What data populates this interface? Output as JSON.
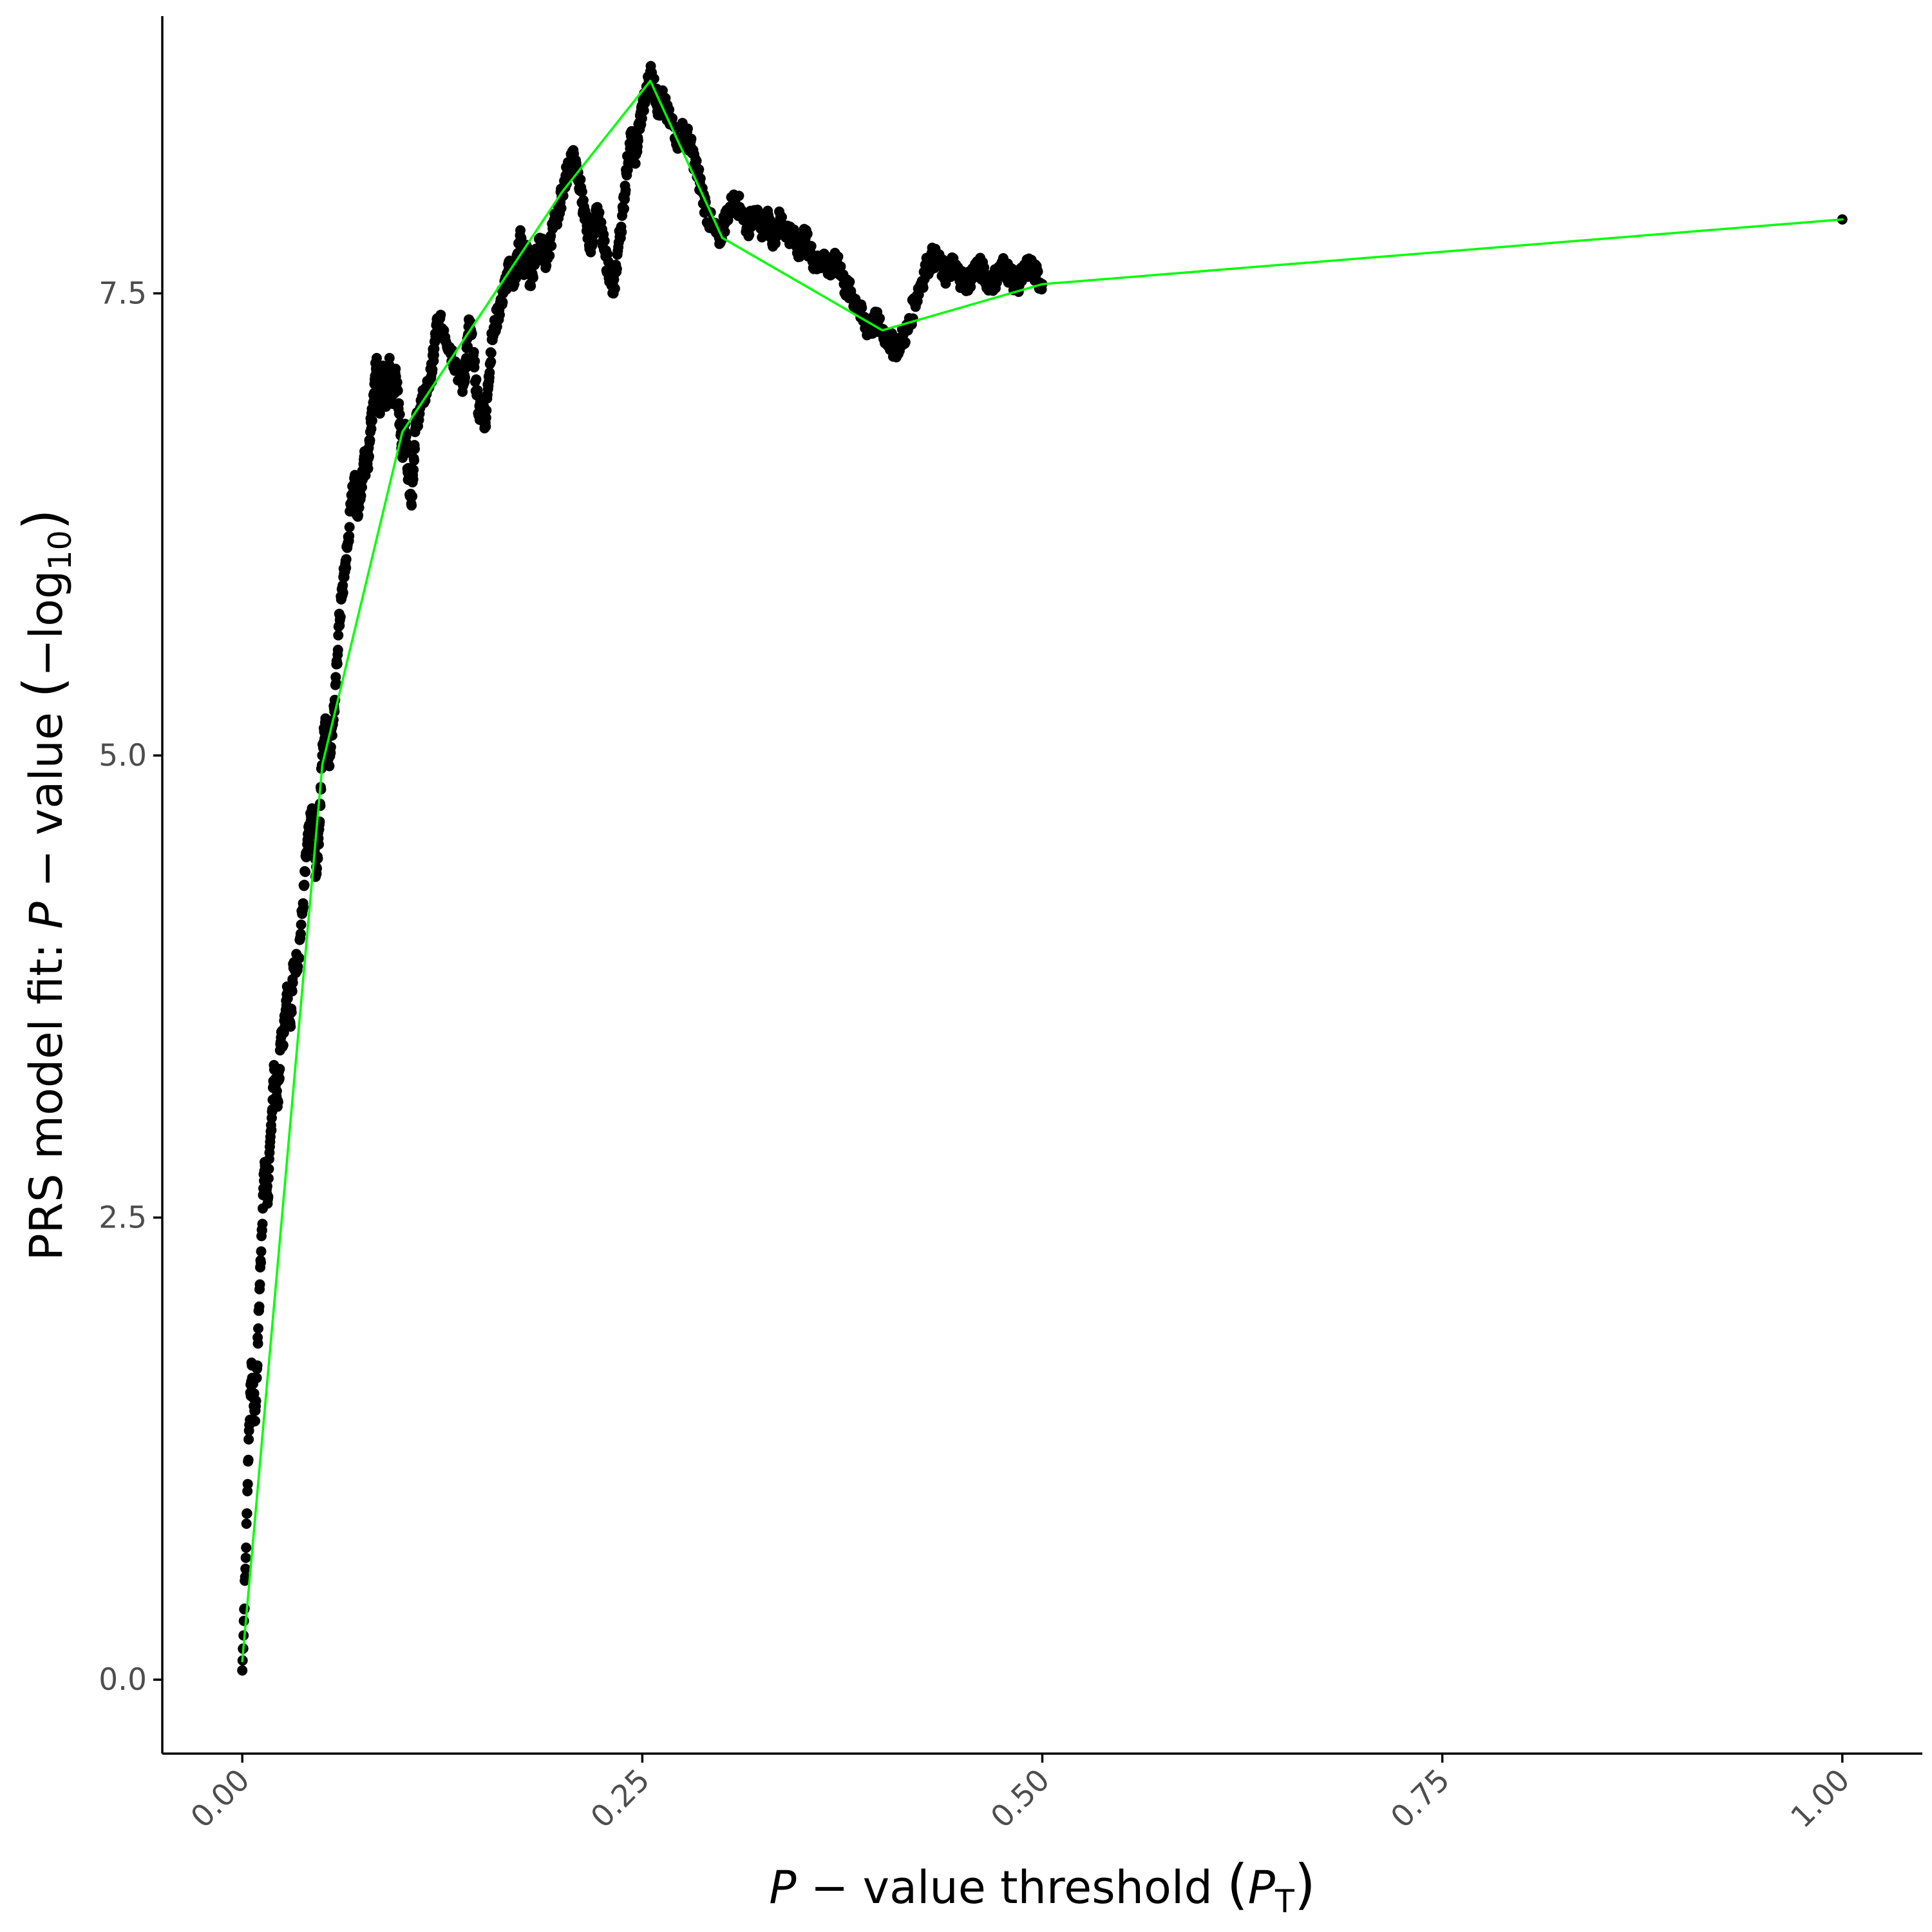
{
  "chart_data": {
    "type": "scatter",
    "title": "",
    "xlabel": "P − value threshold (P_T)",
    "ylabel": "PRS model fit: P − value (−log10)",
    "xlabel_parts": {
      "italic": "P",
      "middle": " − value threshold ",
      "open": "(",
      "sym": "P",
      "sub": "T",
      "close": ")"
    },
    "ylabel_parts": {
      "lead": "PRS model fit",
      "colon": ":",
      "italic": "P",
      "middle": " − value ",
      "open": "(",
      "neg": "−log",
      "sub": "10",
      "close": ")"
    },
    "xlim": [
      -0.05,
      1.05
    ],
    "ylim": [
      -0.4,
      9.0
    ],
    "x_ticks": [
      0,
      0.25,
      0.5,
      0.75,
      1
    ],
    "x_tick_labels": [
      "0.00",
      "0.25",
      "0.50",
      "0.75",
      "1.00"
    ],
    "y_ticks": [
      0,
      2.5,
      5,
      7.5
    ],
    "y_tick_labels": [
      "0.0",
      "2.5",
      "5.0",
      "7.5"
    ],
    "grid": false,
    "legend": "none",
    "colors": {
      "points": "#000000",
      "line": "#00ff00"
    },
    "series": [
      {
        "kind": "points",
        "anchors": [
          [
            0.0,
            0.05
          ],
          [
            0.002,
            0.6
          ],
          [
            0.004,
            1.3
          ],
          [
            0.006,
            1.7
          ],
          [
            0.008,
            1.4
          ],
          [
            0.01,
            1.9
          ],
          [
            0.012,
            2.4
          ],
          [
            0.014,
            2.8
          ],
          [
            0.016,
            2.6
          ],
          [
            0.018,
            3.0
          ],
          [
            0.02,
            3.3
          ],
          [
            0.022,
            3.1
          ],
          [
            0.024,
            3.45
          ],
          [
            0.026,
            3.5
          ],
          [
            0.028,
            3.75
          ],
          [
            0.03,
            3.55
          ],
          [
            0.032,
            3.85
          ],
          [
            0.035,
            3.9
          ],
          [
            0.038,
            4.2
          ],
          [
            0.04,
            4.45
          ],
          [
            0.042,
            4.6
          ],
          [
            0.044,
            4.7
          ],
          [
            0.046,
            4.35
          ],
          [
            0.048,
            4.6
          ],
          [
            0.05,
            5.0
          ],
          [
            0.052,
            5.2
          ],
          [
            0.054,
            4.95
          ],
          [
            0.056,
            5.15
          ],
          [
            0.058,
            5.3
          ],
          [
            0.06,
            5.65
          ],
          [
            0.062,
            5.85
          ],
          [
            0.064,
            6.0
          ],
          [
            0.066,
            6.15
          ],
          [
            0.068,
            6.35
          ],
          [
            0.07,
            6.5
          ],
          [
            0.072,
            6.3
          ],
          [
            0.074,
            6.45
          ],
          [
            0.076,
            6.6
          ],
          [
            0.078,
            6.55
          ],
          [
            0.08,
            6.75
          ],
          [
            0.082,
            6.95
          ],
          [
            0.084,
            7.15
          ],
          [
            0.086,
            6.85
          ],
          [
            0.088,
            7.1
          ],
          [
            0.09,
            6.9
          ],
          [
            0.092,
            7.15
          ],
          [
            0.094,
            6.95
          ],
          [
            0.096,
            7.05
          ],
          [
            0.098,
            6.85
          ],
          [
            0.1,
            6.65
          ],
          [
            0.102,
            6.75
          ],
          [
            0.104,
            6.5
          ],
          [
            0.106,
            6.4
          ],
          [
            0.108,
            6.75
          ],
          [
            0.11,
            6.85
          ],
          [
            0.114,
            6.95
          ],
          [
            0.118,
            7.05
          ],
          [
            0.12,
            7.2
          ],
          [
            0.122,
            7.35
          ],
          [
            0.126,
            7.3
          ],
          [
            0.13,
            7.2
          ],
          [
            0.134,
            7.1
          ],
          [
            0.138,
            7.0
          ],
          [
            0.14,
            7.15
          ],
          [
            0.142,
            7.35
          ],
          [
            0.145,
            7.1
          ],
          [
            0.148,
            6.85
          ],
          [
            0.15,
            6.9
          ],
          [
            0.152,
            6.8
          ],
          [
            0.154,
            7.05
          ],
          [
            0.156,
            7.25
          ],
          [
            0.16,
            7.4
          ],
          [
            0.163,
            7.5
          ],
          [
            0.166,
            7.6
          ],
          [
            0.168,
            7.65
          ],
          [
            0.17,
            7.55
          ],
          [
            0.172,
            7.7
          ],
          [
            0.174,
            7.8
          ],
          [
            0.176,
            7.6
          ],
          [
            0.178,
            7.75
          ],
          [
            0.18,
            7.55
          ],
          [
            0.183,
            7.7
          ],
          [
            0.186,
            7.8
          ],
          [
            0.19,
            7.65
          ],
          [
            0.194,
            7.85
          ],
          [
            0.198,
            7.95
          ],
          [
            0.2,
            8.05
          ],
          [
            0.203,
            8.15
          ],
          [
            0.206,
            8.25
          ],
          [
            0.209,
            8.15
          ],
          [
            0.212,
            8.05
          ],
          [
            0.214,
            7.9
          ],
          [
            0.216,
            7.85
          ],
          [
            0.218,
            7.75
          ],
          [
            0.221,
            7.95
          ],
          [
            0.224,
            7.85
          ],
          [
            0.227,
            7.7
          ],
          [
            0.23,
            7.6
          ],
          [
            0.232,
            7.5
          ],
          [
            0.235,
            7.75
          ],
          [
            0.238,
            7.95
          ],
          [
            0.24,
            8.15
          ],
          [
            0.243,
            8.35
          ],
          [
            0.246,
            8.25
          ],
          [
            0.248,
            8.4
          ],
          [
            0.25,
            8.5
          ],
          [
            0.252,
            8.55
          ],
          [
            0.255,
            8.7
          ],
          [
            0.258,
            8.6
          ],
          [
            0.26,
            8.5
          ],
          [
            0.263,
            8.55
          ],
          [
            0.266,
            8.45
          ],
          [
            0.27,
            8.4
          ],
          [
            0.273,
            8.3
          ],
          [
            0.276,
            8.4
          ],
          [
            0.28,
            8.3
          ],
          [
            0.283,
            8.2
          ],
          [
            0.286,
            8.1
          ],
          [
            0.29,
            7.95
          ],
          [
            0.294,
            7.85
          ],
          [
            0.298,
            7.8
          ],
          [
            0.3,
            7.85
          ],
          [
            0.304,
            7.95
          ],
          [
            0.308,
            8.0
          ],
          [
            0.312,
            7.95
          ],
          [
            0.316,
            7.85
          ],
          [
            0.32,
            7.95
          ],
          [
            0.324,
            7.85
          ],
          [
            0.328,
            7.9
          ],
          [
            0.332,
            7.8
          ],
          [
            0.336,
            7.9
          ],
          [
            0.34,
            7.85
          ],
          [
            0.344,
            7.8
          ],
          [
            0.348,
            7.75
          ],
          [
            0.352,
            7.8
          ],
          [
            0.356,
            7.7
          ],
          [
            0.36,
            7.65
          ],
          [
            0.364,
            7.7
          ],
          [
            0.368,
            7.6
          ],
          [
            0.372,
            7.7
          ],
          [
            0.376,
            7.55
          ],
          [
            0.38,
            7.5
          ],
          [
            0.384,
            7.45
          ],
          [
            0.388,
            7.35
          ],
          [
            0.392,
            7.3
          ],
          [
            0.396,
            7.35
          ],
          [
            0.4,
            7.3
          ],
          [
            0.404,
            7.25
          ],
          [
            0.408,
            7.2
          ],
          [
            0.412,
            7.25
          ],
          [
            0.416,
            7.3
          ],
          [
            0.42,
            7.45
          ],
          [
            0.424,
            7.55
          ],
          [
            0.428,
            7.65
          ],
          [
            0.432,
            7.7
          ],
          [
            0.436,
            7.65
          ],
          [
            0.44,
            7.6
          ],
          [
            0.444,
            7.65
          ],
          [
            0.448,
            7.6
          ],
          [
            0.452,
            7.55
          ],
          [
            0.456,
            7.6
          ],
          [
            0.46,
            7.65
          ],
          [
            0.464,
            7.6
          ],
          [
            0.468,
            7.55
          ],
          [
            0.472,
            7.6
          ],
          [
            0.476,
            7.65
          ],
          [
            0.48,
            7.6
          ],
          [
            0.484,
            7.55
          ],
          [
            0.488,
            7.6
          ],
          [
            0.492,
            7.65
          ],
          [
            0.496,
            7.6
          ],
          [
            0.5,
            7.55
          ],
          [
            1.0,
            7.9
          ]
        ]
      },
      {
        "kind": "line",
        "x": [
          0.0,
          0.05,
          0.1,
          0.2,
          0.255,
          0.3,
          0.4,
          0.5,
          1.0
        ],
        "y": [
          0.1,
          4.95,
          6.75,
          8.05,
          8.65,
          7.8,
          7.3,
          7.55,
          7.9
        ]
      }
    ]
  }
}
